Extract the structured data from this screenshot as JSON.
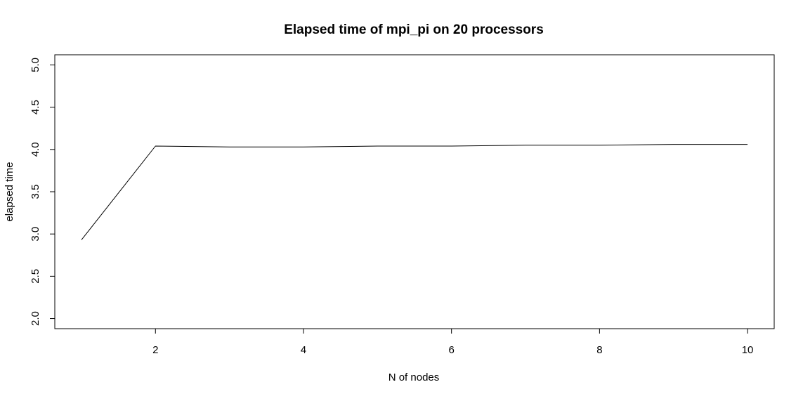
{
  "chart_data": {
    "type": "line",
    "title": "Elapsed time of mpi_pi on 20 processors",
    "xlabel": "N of nodes",
    "ylabel": "elapsed time",
    "x": [
      1,
      2,
      3,
      4,
      5,
      6,
      7,
      8,
      9,
      10
    ],
    "series": [
      {
        "values": [
          2.93,
          4.04,
          4.03,
          4.03,
          4.04,
          4.04,
          4.05,
          4.05,
          4.06,
          4.06
        ]
      }
    ],
    "xlim": [
      0.64,
      10.36
    ],
    "ylim": [
      1.88,
      5.12
    ],
    "xticks": [
      2,
      4,
      6,
      8,
      10
    ],
    "xtick_labels": [
      "2",
      "4",
      "6",
      "8",
      "10"
    ],
    "yticks": [
      2.0,
      2.5,
      3.0,
      3.5,
      4.0,
      4.5,
      5.0
    ],
    "ytick_labels": [
      "2.0",
      "2.5",
      "3.0",
      "3.5",
      "4.0",
      "4.5",
      "5.0"
    ],
    "grid": false,
    "legend": "none",
    "line_color": "#000000"
  }
}
